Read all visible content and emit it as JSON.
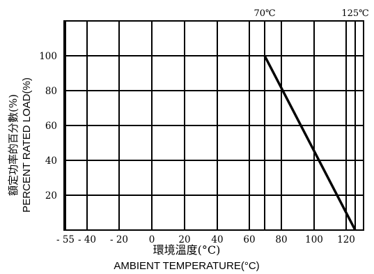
{
  "chart_data": {
    "type": "line",
    "title": "",
    "xlabel_zh": "環境溫度(°C)",
    "xlabel_en": "AMBIENT TEMPERATURE(°C)",
    "ylabel_zh": "額定功率的百分數(%)",
    "ylabel_en": "PERCENT RATED LOAD(%)",
    "x_ticks": [
      -55,
      -40,
      -20,
      0,
      20,
      40,
      60,
      80,
      100,
      120
    ],
    "x_tick_labels": [
      "- 55",
      "- 40",
      "- 20",
      "0",
      "20",
      "40",
      "60",
      "80",
      "100",
      "120"
    ],
    "y_ticks": [
      20,
      40,
      60,
      80,
      100
    ],
    "y_tick_labels": [
      "20",
      "40",
      "60",
      "80",
      "100"
    ],
    "xlim": [
      -55,
      128
    ],
    "ylim": [
      0,
      120
    ],
    "grid": true,
    "series": [
      {
        "values": [
          [
            70,
            100
          ],
          [
            125,
            0
          ]
        ]
      }
    ],
    "reference_lines": [
      {
        "x": 70,
        "label": "70℃"
      },
      {
        "x": 125,
        "label": "125℃"
      }
    ]
  }
}
